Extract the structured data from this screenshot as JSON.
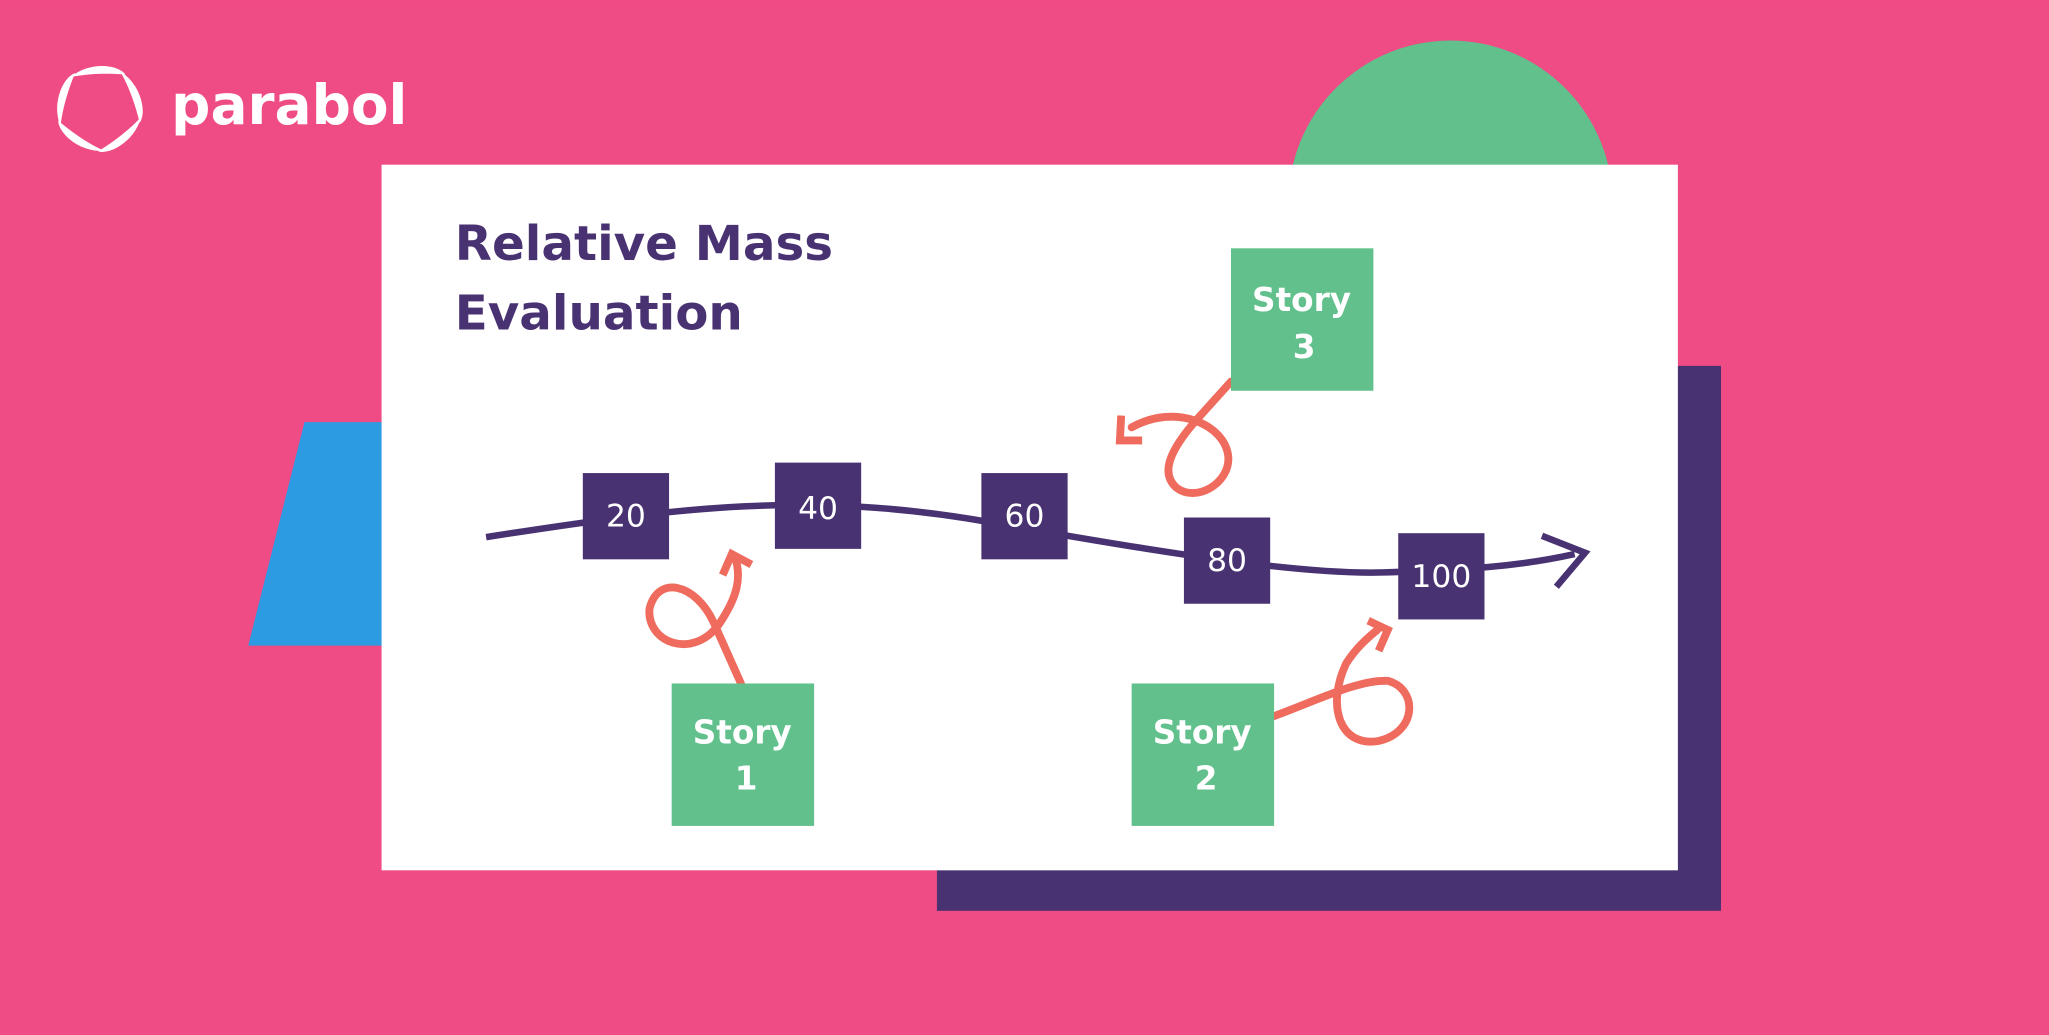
{
  "brand": {
    "name": "parabol",
    "icon": "parabol-logo-icon"
  },
  "title": {
    "line1": "Relative Mass",
    "line2": "Evaluation"
  },
  "scale": {
    "markers": [
      "20",
      "40",
      "60",
      "80",
      "100"
    ]
  },
  "stories": [
    {
      "label": "Story",
      "number": "1"
    },
    {
      "label": "Story",
      "number": "2"
    },
    {
      "label": "Story",
      "number": "3"
    }
  ],
  "colors": {
    "background": "#EF4B84",
    "green": "#61C08C",
    "purple": "#493272",
    "blue": "#2D9BE2",
    "coral": "#EE6B5E",
    "card": "#FFFFFF"
  }
}
